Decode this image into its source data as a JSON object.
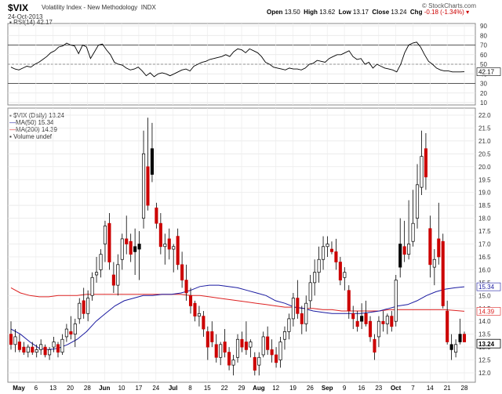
{
  "header": {
    "ticker": "$VIX",
    "name": "Volatility Index - New Methodology",
    "exchange": "INDX",
    "date": "24-Oct-2013",
    "brand": "© StockCharts.com",
    "open_label": "Open",
    "open": "13.50",
    "high_label": "High",
    "high": "13.62",
    "low_label": "Low",
    "low": "13.17",
    "close_label": "Close",
    "close": "13.24",
    "chg_label": "Chg",
    "chg": "-0.18 (-1.34%)"
  },
  "rsi_panel": {
    "legend": "RSI(14) 42.17",
    "last_value_label": "42.17",
    "ticks": [
      90,
      80,
      70,
      60,
      50,
      40,
      30,
      20,
      10
    ]
  },
  "price_panel": {
    "legend_main": "$VIX (Daily) 13.24",
    "legend_ma50": "MA(50) 15.34",
    "legend_ma200": "MA(200) 14.39",
    "legend_volume": "Volume undef",
    "last_close_label": "13.24",
    "ma50_label": "15.34",
    "ma200_label": "14.39",
    "ticks": [
      "22.0",
      "21.5",
      "21.0",
      "20.5",
      "20.0",
      "19.5",
      "19.0",
      "18.5",
      "18.0",
      "17.5",
      "17.0",
      "16.5",
      "16.0",
      "15.5",
      "15.0",
      "14.5",
      "14.0",
      "13.5",
      "13.0",
      "12.5",
      "12.0"
    ]
  },
  "x_axis": {
    "labels": [
      "May",
      "6",
      "13",
      "20",
      "28",
      "Jun",
      "10",
      "17",
      "24",
      "Jul",
      "8",
      "15",
      "22",
      "29",
      "Aug",
      "12",
      "19",
      "26",
      "Sep",
      "9",
      "16",
      "23",
      "Oct",
      "7",
      "14",
      "21",
      "28"
    ]
  },
  "colors": {
    "up": "#ffffff",
    "down": "#cc0000",
    "black": "#000000",
    "ma50": "#1a1aa0",
    "ma200": "#dd2222",
    "rsi": "#000000"
  },
  "chart_data": {
    "type": "candlestick",
    "title": "$VIX Volatility Index - New Methodology INDX",
    "period": "Daily",
    "y_range": [
      12.0,
      22.0
    ],
    "rsi_range": [
      0,
      100
    ],
    "x": [
      "May",
      "6",
      "13",
      "20",
      "28",
      "Jun",
      "10",
      "17",
      "24",
      "Jul",
      "8",
      "15",
      "22",
      "29",
      "Aug",
      "12",
      "19",
      "26",
      "Sep",
      "9",
      "16",
      "23",
      "Oct",
      "7",
      "14",
      "21",
      "28"
    ],
    "candles": [
      {
        "o": 13.5,
        "h": 14.0,
        "l": 12.9,
        "c": 13.1,
        "col": "red"
      },
      {
        "o": 13.1,
        "h": 13.7,
        "l": 12.8,
        "c": 13.4,
        "col": "white"
      },
      {
        "o": 13.2,
        "h": 13.5,
        "l": 12.8,
        "c": 12.9,
        "col": "red"
      },
      {
        "o": 13.0,
        "h": 13.2,
        "l": 12.7,
        "c": 12.8,
        "col": "red"
      },
      {
        "o": 12.8,
        "h": 13.1,
        "l": 12.6,
        "c": 13.0,
        "col": "white"
      },
      {
        "o": 13.0,
        "h": 13.2,
        "l": 12.7,
        "c": 12.8,
        "col": "red"
      },
      {
        "o": 12.8,
        "h": 13.1,
        "l": 12.6,
        "c": 12.9,
        "col": "white"
      },
      {
        "o": 12.9,
        "h": 13.3,
        "l": 12.7,
        "c": 13.1,
        "col": "white"
      },
      {
        "o": 13.0,
        "h": 13.1,
        "l": 12.6,
        "c": 12.7,
        "col": "red"
      },
      {
        "o": 12.7,
        "h": 13.0,
        "l": 12.5,
        "c": 12.9,
        "col": "white"
      },
      {
        "o": 13.0,
        "h": 13.4,
        "l": 12.8,
        "c": 13.2,
        "col": "white"
      },
      {
        "o": 13.1,
        "h": 13.2,
        "l": 12.6,
        "c": 12.8,
        "col": "red"
      },
      {
        "o": 12.8,
        "h": 13.5,
        "l": 12.7,
        "c": 13.3,
        "col": "white"
      },
      {
        "o": 13.4,
        "h": 13.9,
        "l": 13.2,
        "c": 13.7,
        "col": "white"
      },
      {
        "o": 13.6,
        "h": 14.2,
        "l": 13.3,
        "c": 13.5,
        "col": "red"
      },
      {
        "o": 13.5,
        "h": 14.1,
        "l": 13.0,
        "c": 13.9,
        "col": "white"
      },
      {
        "o": 14.1,
        "h": 14.9,
        "l": 13.9,
        "c": 14.7,
        "col": "white"
      },
      {
        "o": 14.8,
        "h": 15.3,
        "l": 14.1,
        "c": 14.3,
        "col": "red"
      },
      {
        "o": 14.3,
        "h": 15.2,
        "l": 14.0,
        "c": 14.9,
        "col": "white"
      },
      {
        "o": 15.0,
        "h": 15.9,
        "l": 14.8,
        "c": 15.7,
        "col": "white"
      },
      {
        "o": 15.8,
        "h": 16.5,
        "l": 15.5,
        "c": 15.9,
        "col": "white"
      },
      {
        "o": 16.0,
        "h": 16.8,
        "l": 15.7,
        "c": 16.6,
        "col": "white"
      },
      {
        "o": 17.0,
        "h": 17.9,
        "l": 16.3,
        "c": 17.7,
        "col": "white"
      },
      {
        "o": 17.8,
        "h": 18.2,
        "l": 16.0,
        "c": 16.3,
        "col": "red"
      },
      {
        "o": 15.8,
        "h": 16.3,
        "l": 15.1,
        "c": 15.4,
        "col": "red"
      },
      {
        "o": 15.4,
        "h": 16.6,
        "l": 15.0,
        "c": 16.2,
        "col": "white"
      },
      {
        "o": 16.4,
        "h": 17.4,
        "l": 16.0,
        "c": 17.2,
        "col": "white"
      },
      {
        "o": 17.2,
        "h": 18.1,
        "l": 16.6,
        "c": 17.0,
        "col": "red"
      },
      {
        "o": 17.1,
        "h": 17.4,
        "l": 16.3,
        "c": 16.6,
        "col": "red"
      },
      {
        "o": 16.7,
        "h": 17.6,
        "l": 15.8,
        "c": 16.9,
        "col": "black"
      },
      {
        "o": 17.0,
        "h": 17.5,
        "l": 15.6,
        "c": 16.8,
        "col": "black"
      },
      {
        "o": 18.0,
        "h": 21.4,
        "l": 17.6,
        "c": 20.5,
        "col": "white"
      },
      {
        "o": 20.0,
        "h": 21.9,
        "l": 18.3,
        "c": 18.5,
        "col": "red"
      },
      {
        "o": 20.7,
        "h": 21.7,
        "l": 19.4,
        "c": 19.7,
        "col": "black"
      },
      {
        "o": 18.4,
        "h": 18.6,
        "l": 17.6,
        "c": 17.8,
        "col": "red"
      },
      {
        "o": 17.8,
        "h": 18.2,
        "l": 16.6,
        "c": 16.9,
        "col": "red"
      },
      {
        "o": 16.9,
        "h": 17.4,
        "l": 16.2,
        "c": 17.0,
        "col": "white"
      },
      {
        "o": 17.2,
        "h": 17.6,
        "l": 16.4,
        "c": 16.8,
        "col": "red"
      },
      {
        "o": 16.8,
        "h": 17.0,
        "l": 15.9,
        "c": 16.9,
        "col": "white"
      },
      {
        "o": 17.3,
        "h": 17.6,
        "l": 16.0,
        "c": 16.2,
        "col": "red"
      },
      {
        "o": 16.2,
        "h": 16.7,
        "l": 15.3,
        "c": 15.6,
        "col": "red"
      },
      {
        "o": 15.6,
        "h": 16.2,
        "l": 14.8,
        "c": 15.1,
        "col": "red"
      },
      {
        "o": 15.0,
        "h": 15.3,
        "l": 14.3,
        "c": 14.6,
        "col": "red"
      },
      {
        "o": 14.7,
        "h": 14.8,
        "l": 14.0,
        "c": 14.2,
        "col": "red"
      },
      {
        "o": 14.2,
        "h": 14.6,
        "l": 13.8,
        "c": 14.3,
        "col": "white"
      },
      {
        "o": 14.2,
        "h": 14.4,
        "l": 13.4,
        "c": 13.7,
        "col": "red"
      },
      {
        "o": 13.6,
        "h": 13.8,
        "l": 12.5,
        "c": 13.0,
        "col": "red"
      },
      {
        "o": 13.6,
        "h": 14.0,
        "l": 13.0,
        "c": 13.2,
        "col": "red"
      },
      {
        "o": 13.1,
        "h": 13.5,
        "l": 12.4,
        "c": 12.6,
        "col": "red"
      },
      {
        "o": 12.6,
        "h": 13.2,
        "l": 12.3,
        "c": 13.1,
        "col": "white"
      },
      {
        "o": 13.2,
        "h": 13.7,
        "l": 12.6,
        "c": 12.8,
        "col": "red"
      },
      {
        "o": 12.8,
        "h": 13.0,
        "l": 12.1,
        "c": 12.3,
        "col": "red"
      },
      {
        "o": 12.3,
        "h": 12.7,
        "l": 11.9,
        "c": 12.5,
        "col": "white"
      },
      {
        "o": 12.6,
        "h": 13.5,
        "l": 12.4,
        "c": 13.3,
        "col": "white"
      },
      {
        "o": 13.3,
        "h": 13.6,
        "l": 12.8,
        "c": 13.0,
        "col": "red"
      },
      {
        "o": 13.2,
        "h": 14.0,
        "l": 12.7,
        "c": 12.9,
        "col": "red"
      },
      {
        "o": 13.0,
        "h": 13.3,
        "l": 12.6,
        "c": 13.2,
        "col": "white"
      },
      {
        "o": 12.6,
        "h": 12.8,
        "l": 11.9,
        "c": 12.1,
        "col": "red"
      },
      {
        "o": 12.3,
        "h": 12.8,
        "l": 11.9,
        "c": 12.6,
        "col": "white"
      },
      {
        "o": 12.7,
        "h": 13.6,
        "l": 12.6,
        "c": 13.4,
        "col": "white"
      },
      {
        "o": 13.4,
        "h": 13.8,
        "l": 12.7,
        "c": 12.9,
        "col": "red"
      },
      {
        "o": 12.9,
        "h": 13.3,
        "l": 12.4,
        "c": 12.7,
        "col": "red"
      },
      {
        "o": 12.7,
        "h": 13.0,
        "l": 12.2,
        "c": 12.4,
        "col": "red"
      },
      {
        "o": 12.5,
        "h": 13.4,
        "l": 12.2,
        "c": 13.2,
        "col": "white"
      },
      {
        "o": 13.3,
        "h": 13.8,
        "l": 12.9,
        "c": 13.6,
        "col": "white"
      },
      {
        "o": 13.6,
        "h": 14.3,
        "l": 13.3,
        "c": 14.1,
        "col": "white"
      },
      {
        "o": 14.1,
        "h": 15.1,
        "l": 13.8,
        "c": 14.9,
        "col": "white"
      },
      {
        "o": 14.9,
        "h": 15.6,
        "l": 14.1,
        "c": 14.3,
        "col": "red"
      },
      {
        "o": 14.3,
        "h": 14.6,
        "l": 13.5,
        "c": 13.9,
        "col": "red"
      },
      {
        "o": 13.9,
        "h": 15.0,
        "l": 13.6,
        "c": 14.7,
        "col": "white"
      },
      {
        "o": 14.8,
        "h": 15.8,
        "l": 14.5,
        "c": 15.5,
        "col": "white"
      },
      {
        "o": 15.5,
        "h": 16.4,
        "l": 15.0,
        "c": 15.9,
        "col": "white"
      },
      {
        "o": 15.9,
        "h": 16.9,
        "l": 15.5,
        "c": 16.4,
        "col": "white"
      },
      {
        "o": 16.4,
        "h": 17.3,
        "l": 16.0,
        "c": 16.9,
        "col": "white"
      },
      {
        "o": 16.9,
        "h": 17.3,
        "l": 16.5,
        "c": 17.0,
        "col": "white"
      },
      {
        "o": 16.8,
        "h": 17.1,
        "l": 16.6,
        "c": 16.7,
        "col": "red"
      },
      {
        "o": 16.7,
        "h": 17.2,
        "l": 16.0,
        "c": 16.3,
        "col": "red"
      },
      {
        "o": 16.3,
        "h": 16.5,
        "l": 15.4,
        "c": 15.6,
        "col": "red"
      },
      {
        "o": 15.7,
        "h": 16.1,
        "l": 15.2,
        "c": 15.9,
        "col": "white"
      },
      {
        "o": 15.2,
        "h": 15.4,
        "l": 14.1,
        "c": 14.4,
        "col": "red"
      },
      {
        "o": 14.3,
        "h": 14.6,
        "l": 13.7,
        "c": 14.1,
        "col": "red"
      },
      {
        "o": 14.0,
        "h": 14.4,
        "l": 13.6,
        "c": 13.8,
        "col": "red"
      },
      {
        "o": 14.0,
        "h": 14.7,
        "l": 13.7,
        "c": 14.2,
        "col": "black"
      },
      {
        "o": 14.3,
        "h": 14.8,
        "l": 13.8,
        "c": 13.9,
        "col": "red"
      },
      {
        "o": 14.0,
        "h": 14.2,
        "l": 13.2,
        "c": 13.4,
        "col": "red"
      },
      {
        "o": 13.3,
        "h": 13.5,
        "l": 12.5,
        "c": 12.8,
        "col": "red"
      },
      {
        "o": 13.4,
        "h": 14.2,
        "l": 13.0,
        "c": 14.0,
        "col": "white"
      },
      {
        "o": 14.0,
        "h": 14.4,
        "l": 13.6,
        "c": 13.9,
        "col": "red"
      },
      {
        "o": 13.9,
        "h": 14.3,
        "l": 13.5,
        "c": 14.2,
        "col": "white"
      },
      {
        "o": 14.2,
        "h": 14.4,
        "l": 13.6,
        "c": 13.8,
        "col": "red"
      },
      {
        "o": 14.0,
        "h": 15.8,
        "l": 13.8,
        "c": 15.6,
        "col": "white"
      },
      {
        "o": 16.1,
        "h": 18.0,
        "l": 15.7,
        "c": 17.0,
        "col": "black"
      },
      {
        "o": 16.9,
        "h": 17.9,
        "l": 16.3,
        "c": 16.6,
        "col": "red"
      },
      {
        "o": 16.6,
        "h": 18.7,
        "l": 16.4,
        "c": 17.0,
        "col": "white"
      },
      {
        "o": 17.1,
        "h": 19.1,
        "l": 16.9,
        "c": 17.8,
        "col": "white"
      },
      {
        "o": 18.0,
        "h": 20.1,
        "l": 17.6,
        "c": 19.3,
        "col": "white"
      },
      {
        "o": 19.2,
        "h": 21.4,
        "l": 18.9,
        "c": 20.4,
        "col": "white"
      },
      {
        "o": 20.7,
        "h": 21.3,
        "l": 19.1,
        "c": 19.6,
        "col": "red"
      },
      {
        "o": 17.6,
        "h": 18.1,
        "l": 15.7,
        "c": 16.2,
        "col": "red"
      },
      {
        "o": 16.1,
        "h": 16.8,
        "l": 15.4,
        "c": 16.4,
        "col": "white"
      },
      {
        "o": 17.2,
        "h": 18.6,
        "l": 16.2,
        "c": 16.5,
        "col": "red"
      },
      {
        "o": 17.1,
        "h": 17.4,
        "l": 14.5,
        "c": 14.6,
        "col": "red"
      },
      {
        "o": 14.4,
        "h": 14.8,
        "l": 13.1,
        "c": 13.2,
        "col": "red"
      },
      {
        "o": 13.1,
        "h": 13.5,
        "l": 12.5,
        "c": 12.9,
        "col": "black"
      },
      {
        "o": 12.8,
        "h": 13.3,
        "l": 12.6,
        "c": 13.1,
        "col": "white"
      },
      {
        "o": 13.5,
        "h": 14.1,
        "l": 13.1,
        "c": 13.2,
        "col": "black"
      },
      {
        "o": 13.5,
        "h": 13.6,
        "l": 13.2,
        "c": 13.2,
        "col": "red"
      }
    ],
    "ma50": [
      13.7,
      13.5,
      13.2,
      12.95,
      12.9,
      12.95,
      13.1,
      13.3,
      13.6,
      14.0,
      14.3,
      14.6,
      14.8,
      14.9,
      15.0,
      15.0,
      15.05,
      15.05,
      15.1,
      15.2,
      15.35,
      15.4,
      15.4,
      15.35,
      15.3,
      15.2,
      15.1,
      15.0,
      14.8,
      14.7,
      14.55,
      14.5,
      14.4,
      14.35,
      14.3,
      14.3,
      14.3,
      14.3,
      14.35,
      14.4,
      14.5,
      14.6,
      14.65,
      14.8,
      15.0,
      15.15,
      15.25,
      15.3,
      15.34
    ],
    "ma200": [
      15.3,
      15.1,
      15.0,
      14.95,
      14.95,
      15.0,
      15.0,
      15.0,
      15.05,
      15.05,
      15.05,
      15.05,
      15.05,
      15.05,
      15.05,
      15.05,
      15.05,
      15.05,
      15.05,
      15.0,
      15.0,
      14.95,
      14.9,
      14.85,
      14.8,
      14.75,
      14.7,
      14.65,
      14.6,
      14.55,
      14.55,
      14.5,
      14.5,
      14.45,
      14.45,
      14.4,
      14.4,
      14.4,
      14.4,
      14.4,
      14.45,
      14.45,
      14.45,
      14.45,
      14.45,
      14.45,
      14.45,
      14.42,
      14.39
    ],
    "rsi14": [
      47,
      45,
      44,
      46,
      48,
      47,
      50,
      52,
      55,
      58,
      62,
      64,
      68,
      69,
      72,
      70,
      69,
      61,
      70,
      68,
      56,
      63,
      70,
      71,
      65,
      60,
      52,
      50,
      49,
      46,
      44,
      45,
      47,
      43,
      38,
      41,
      37,
      40,
      41,
      40,
      38,
      40,
      42,
      44,
      45,
      43,
      48,
      50,
      52,
      53,
      55,
      56,
      57,
      58,
      60,
      58,
      63,
      66,
      65,
      62,
      66,
      64,
      62,
      58,
      52,
      50,
      47,
      46,
      45,
      44,
      46,
      45,
      45,
      44,
      46,
      50,
      51,
      54,
      53,
      52,
      56,
      58,
      60,
      60,
      62,
      64,
      58,
      55,
      56,
      50,
      52,
      46,
      50,
      48,
      46,
      45,
      44,
      42,
      50,
      62,
      70,
      72,
      73,
      68,
      60,
      53,
      50,
      46,
      44,
      43,
      43,
      42,
      42,
      42,
      42.17
    ],
    "last": {
      "open": 13.5,
      "high": 13.62,
      "low": 13.17,
      "close": 13.24,
      "change": -0.18,
      "change_pct": -1.34
    }
  }
}
